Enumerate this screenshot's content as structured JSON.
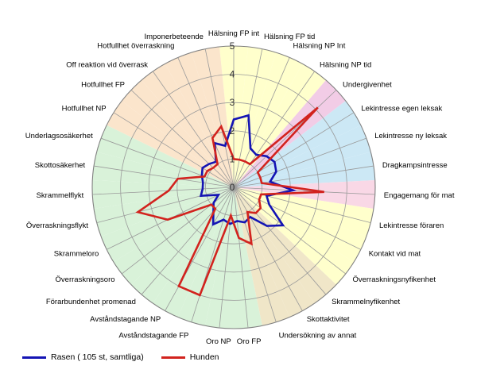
{
  "chart_data": {
    "type": "radar",
    "r_range": [
      0,
      5
    ],
    "r_ticks": [
      0,
      1,
      2,
      3,
      4,
      5
    ],
    "r_tick_labels": [
      "0",
      "1",
      "2",
      "3",
      "4",
      "5"
    ],
    "categories": [
      "Hälsning FP int",
      "Hälsning FP tid",
      "Hälsning NP Int",
      "Hälsning NP tid",
      "Undergivenhet",
      "Lekintresse egen leksak",
      "Lekintresse ny leksak",
      "Dragkampsintresse",
      "Engagemang för mat",
      "Lekintresse föraren",
      "Kontakt vid mat",
      "Överraskningsnyfikenhet",
      "Skrammelnyfikenhet",
      "Skottaktivitet",
      "Undersökning av annat",
      "Oro FP",
      "Oro NP",
      "Avståndstagande FP",
      "Avståndstagande NP",
      "Förarbundenhet promenad",
      "Överraskningsoro",
      "Skrammeloro",
      "Överraskningsflykt",
      "Skrammelflykt",
      "Skottosäkerhet",
      "Underlagsosäkerhet",
      "Hotfullhet NP",
      "Hotfullhet FP",
      "Off reaktion vid överrask",
      "Hotfullhet överraskning",
      "Imponerbeteende"
    ],
    "sector_colors": [
      "#ffffcc",
      "#ffffcc",
      "#ffffcc",
      "#ffffcc",
      "#f2cce6",
      "#cce8f5",
      "#cce8f5",
      "#cce8f5",
      "#f9d8e6",
      "#ffffcc",
      "#ffffcc",
      "#ffffcc",
      "#f0e6c8",
      "#f0e6c8",
      "#f0e6c8",
      "#d9f2d9",
      "#d9f2d9",
      "#d9f2d9",
      "#d9f2d9",
      "#d9f2d9",
      "#d9f2d9",
      "#d9f2d9",
      "#d9f2d9",
      "#d9f2d9",
      "#d9f2d9",
      "#d9f2d9",
      "#fbe5cc",
      "#fbe5cc",
      "#fbe5cc",
      "#fbe5cc",
      "#fbe5cc"
    ],
    "series": [
      {
        "name": "Rasen ( 105 st, samtliga)",
        "color": "#1414b4",
        "values": [
          2.4,
          2.6,
          1.5,
          1.4,
          1.6,
          1.7,
          1.6,
          1.3,
          2.1,
          1.2,
          1.4,
          2.2,
          1.8,
          1.2,
          1.3,
          1.2,
          1.3,
          1.2,
          1.5,
          1.1,
          0.9,
          0.6,
          1.2,
          1.1,
          1.1,
          1.2,
          1.3,
          1.2,
          1.1,
          1.7,
          1.5
        ]
      },
      {
        "name": "Hunden",
        "color": "#d2231e",
        "values": [
          1.0,
          1.0,
          1.0,
          1.0,
          4.1,
          1.0,
          1.0,
          1.0,
          3.2,
          1.0,
          1.0,
          1.2,
          1.2,
          1.0,
          2.1,
          1.8,
          1.0,
          4.0,
          4.0,
          1.0,
          1.0,
          2.6,
          3.5,
          2.3,
          2.0,
          1.1,
          1.1,
          1.0,
          1.0,
          1.9,
          2.2
        ]
      }
    ],
    "legend_position": "bottom-left"
  }
}
